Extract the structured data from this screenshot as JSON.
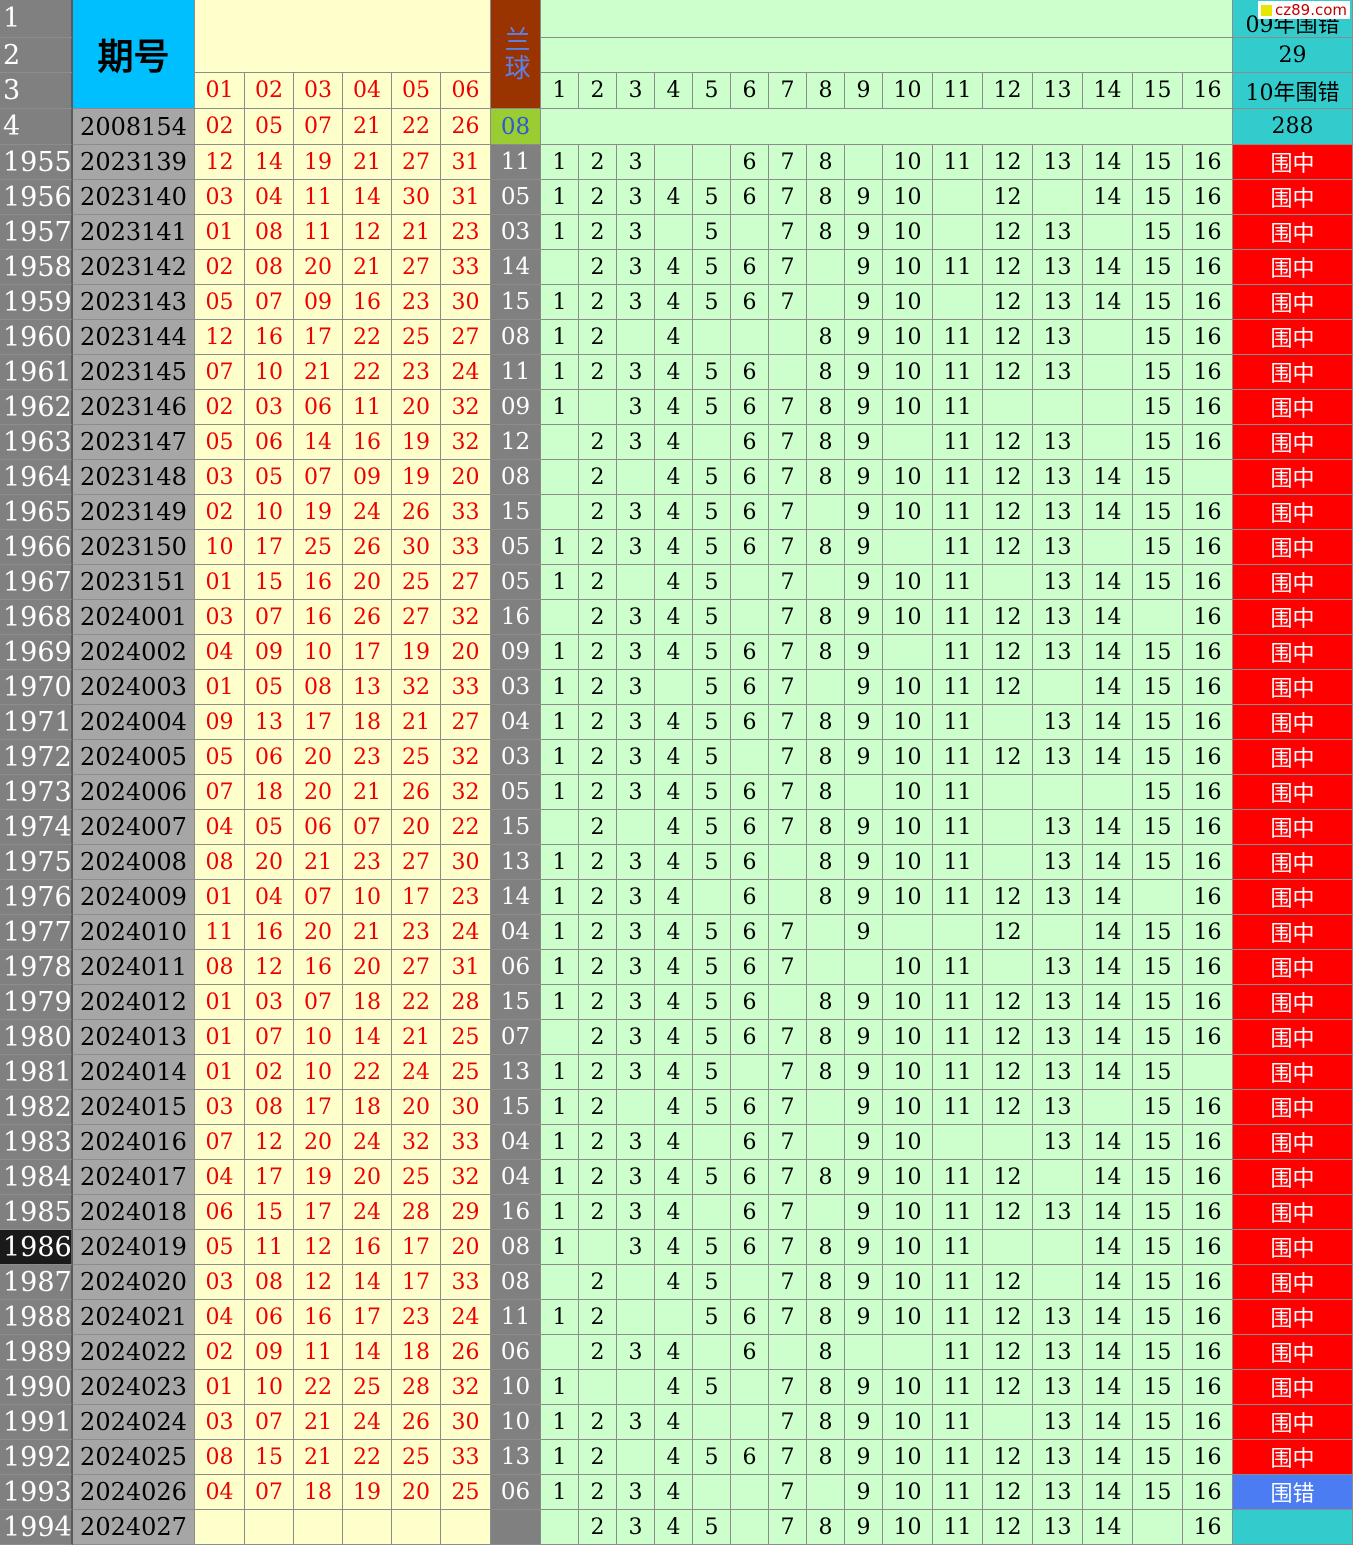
{
  "header": {
    "row_labels": [
      "1",
      "2",
      "3",
      "4"
    ],
    "issue_label": "期号",
    "blue_label": "兰球",
    "red_positions": [
      "01",
      "02",
      "03",
      "04",
      "05",
      "06"
    ],
    "grid_numbers": [
      "1",
      "2",
      "3",
      "4",
      "5",
      "6",
      "7",
      "8",
      "9",
      "10",
      "11",
      "12",
      "13",
      "14",
      "15",
      "16"
    ],
    "stats": {
      "r1": "09年围错",
      "r2": "29",
      "r3": "10年围错",
      "r4": "288"
    },
    "row4": {
      "issue": "2008154",
      "reds": [
        "02",
        "05",
        "07",
        "21",
        "22",
        "26"
      ],
      "blue": "08"
    },
    "watermark": "cz89.com"
  },
  "rows": [
    {
      "row": "1955",
      "issue": "2023139",
      "reds": [
        "12",
        "14",
        "19",
        "21",
        "27",
        "31"
      ],
      "blue": "11",
      "grid": "1 2 3 6 7 8 10 11 12 13 14 15 16",
      "result": "围中"
    },
    {
      "row": "1956",
      "issue": "2023140",
      "reds": [
        "03",
        "04",
        "11",
        "14",
        "30",
        "31"
      ],
      "blue": "05",
      "grid": "1 2 3 4 5 6 7 8 9 10 12 14 15 16",
      "result": "围中"
    },
    {
      "row": "1957",
      "issue": "2023141",
      "reds": [
        "01",
        "08",
        "11",
        "12",
        "21",
        "23"
      ],
      "blue": "03",
      "grid": "1 2 3 5 7 8 9 10 12 13 15 16",
      "result": "围中"
    },
    {
      "row": "1958",
      "issue": "2023142",
      "reds": [
        "02",
        "08",
        "20",
        "21",
        "27",
        "33"
      ],
      "blue": "14",
      "grid": "2 3 4 5 6 7 9 10 11 12 13 14 15 16",
      "result": "围中"
    },
    {
      "row": "1959",
      "issue": "2023143",
      "reds": [
        "05",
        "07",
        "09",
        "16",
        "23",
        "30"
      ],
      "blue": "15",
      "grid": "1 2 3 4 5 6 7 9 10 12 13 14 15 16",
      "result": "围中"
    },
    {
      "row": "1960",
      "issue": "2023144",
      "reds": [
        "12",
        "16",
        "17",
        "22",
        "25",
        "27"
      ],
      "blue": "08",
      "grid": "1 2 4 8 9 10 11 12 13 15 16",
      "result": "围中"
    },
    {
      "row": "1961",
      "issue": "2023145",
      "reds": [
        "07",
        "10",
        "21",
        "22",
        "23",
        "24"
      ],
      "blue": "11",
      "grid": "1 2 3 4 5 6 8 9 10 11 12 13 15 16",
      "result": "围中"
    },
    {
      "row": "1962",
      "issue": "2023146",
      "reds": [
        "02",
        "03",
        "06",
        "11",
        "20",
        "32"
      ],
      "blue": "09",
      "grid": "1 3 4 5 6 7 8 9 10 11 15 16",
      "result": "围中"
    },
    {
      "row": "1963",
      "issue": "2023147",
      "reds": [
        "05",
        "06",
        "14",
        "16",
        "19",
        "32"
      ],
      "blue": "12",
      "grid": "2 3 4 6 7 8 9 11 12 13 15 16",
      "result": "围中"
    },
    {
      "row": "1964",
      "issue": "2023148",
      "reds": [
        "03",
        "05",
        "07",
        "09",
        "19",
        "20"
      ],
      "blue": "08",
      "grid": "2 4 5 6 7 8 9 10 11 12 13 14 15",
      "result": "围中"
    },
    {
      "row": "1965",
      "issue": "2023149",
      "reds": [
        "02",
        "10",
        "19",
        "24",
        "26",
        "33"
      ],
      "blue": "15",
      "grid": "2 3 4 5 6 7 9 10 11 12 13 14 15 16",
      "result": "围中"
    },
    {
      "row": "1966",
      "issue": "2023150",
      "reds": [
        "10",
        "17",
        "25",
        "26",
        "30",
        "33"
      ],
      "blue": "05",
      "grid": "1 2 3 4 5 6 7 8 9 11 12 13 15 16",
      "result": "围中"
    },
    {
      "row": "1967",
      "issue": "2023151",
      "reds": [
        "01",
        "15",
        "16",
        "20",
        "25",
        "27"
      ],
      "blue": "05",
      "grid": "1 2 4 5 7 9 10 11 13 14 15 16",
      "result": "围中"
    },
    {
      "row": "1968",
      "issue": "2024001",
      "reds": [
        "03",
        "07",
        "16",
        "26",
        "27",
        "32"
      ],
      "blue": "16",
      "grid": "2 3 4 5 7 8 9 10 11 12 13 14 16",
      "result": "围中"
    },
    {
      "row": "1969",
      "issue": "2024002",
      "reds": [
        "04",
        "09",
        "10",
        "17",
        "19",
        "20"
      ],
      "blue": "09",
      "grid": "1 2 3 4 5 6 7 8 9 11 12 13 14 15 16",
      "result": "围中"
    },
    {
      "row": "1970",
      "issue": "2024003",
      "reds": [
        "01",
        "05",
        "08",
        "13",
        "32",
        "33"
      ],
      "blue": "03",
      "grid": "1 2 3 5 6 7 9 10 11 12 14 15 16",
      "result": "围中"
    },
    {
      "row": "1971",
      "issue": "2024004",
      "reds": [
        "09",
        "13",
        "17",
        "18",
        "21",
        "27"
      ],
      "blue": "04",
      "grid": "1 2 3 4 5 6 7 8 9 10 11 13 14 15 16",
      "result": "围中"
    },
    {
      "row": "1972",
      "issue": "2024005",
      "reds": [
        "05",
        "06",
        "20",
        "23",
        "25",
        "32"
      ],
      "blue": "03",
      "grid": "1 2 3 4 5 7 8 9 10 11 12 13 14 15 16",
      "result": "围中"
    },
    {
      "row": "1973",
      "issue": "2024006",
      "reds": [
        "07",
        "18",
        "20",
        "21",
        "26",
        "32"
      ],
      "blue": "05",
      "grid": "1 2 3 4 5 6 7 8 10 11 15 16",
      "result": "围中"
    },
    {
      "row": "1974",
      "issue": "2024007",
      "reds": [
        "04",
        "05",
        "06",
        "07",
        "20",
        "22"
      ],
      "blue": "15",
      "grid": "2 4 5 6 7 8 9 10 11 13 14 15 16",
      "result": "围中"
    },
    {
      "row": "1975",
      "issue": "2024008",
      "reds": [
        "08",
        "20",
        "21",
        "23",
        "27",
        "30"
      ],
      "blue": "13",
      "grid": "1 2 3 4 5 6 8 9 10 11 13 14 15 16",
      "result": "围中"
    },
    {
      "row": "1976",
      "issue": "2024009",
      "reds": [
        "01",
        "04",
        "07",
        "10",
        "17",
        "23"
      ],
      "blue": "14",
      "grid": "1 2 3 4 6 8 9 10 11 12 13 14 16",
      "result": "围中"
    },
    {
      "row": "1977",
      "issue": "2024010",
      "reds": [
        "11",
        "16",
        "20",
        "21",
        "23",
        "24"
      ],
      "blue": "04",
      "grid": "1 2 3 4 5 6 7 9 12 14 15 16",
      "result": "围中"
    },
    {
      "row": "1978",
      "issue": "2024011",
      "reds": [
        "08",
        "12",
        "16",
        "20",
        "27",
        "31"
      ],
      "blue": "06",
      "grid": "1 2 3 4 5 6 7 10 11 13 14 15 16",
      "result": "围中"
    },
    {
      "row": "1979",
      "issue": "2024012",
      "reds": [
        "01",
        "03",
        "07",
        "18",
        "22",
        "28"
      ],
      "blue": "15",
      "grid": "1 2 3 4 5 6 8 9 10 11 12 13 14 15 16",
      "result": "围中"
    },
    {
      "row": "1980",
      "issue": "2024013",
      "reds": [
        "01",
        "07",
        "10",
        "14",
        "21",
        "25"
      ],
      "blue": "07",
      "grid": "2 3 4 5 6 7 8 9 10 11 12 13 14 15 16",
      "result": "围中"
    },
    {
      "row": "1981",
      "issue": "2024014",
      "reds": [
        "01",
        "02",
        "10",
        "22",
        "24",
        "25"
      ],
      "blue": "13",
      "grid": "1 2 3 4 5 7 8 9 10 11 12 13 14 15",
      "result": "围中"
    },
    {
      "row": "1982",
      "issue": "2024015",
      "reds": [
        "03",
        "08",
        "17",
        "18",
        "20",
        "30"
      ],
      "blue": "15",
      "grid": "1 2 4 5 6 7 9 10 11 12 13 15 16",
      "result": "围中"
    },
    {
      "row": "1983",
      "issue": "2024016",
      "reds": [
        "07",
        "12",
        "20",
        "24",
        "32",
        "33"
      ],
      "blue": "04",
      "grid": "1 2 3 4 6 7 9 10 13 14 15 16",
      "result": "围中"
    },
    {
      "row": "1984",
      "issue": "2024017",
      "reds": [
        "04",
        "17",
        "19",
        "20",
        "25",
        "32"
      ],
      "blue": "04",
      "grid": "1 2 3 4 5 6 7 8 9 10 11 12 14 15 16",
      "result": "围中"
    },
    {
      "row": "1985",
      "issue": "2024018",
      "reds": [
        "06",
        "15",
        "17",
        "24",
        "28",
        "29"
      ],
      "blue": "16",
      "grid": "1 2 3 4 6 7 9 10 11 12 13 14 15 16",
      "result": "围中"
    },
    {
      "row": "1986",
      "issue": "2024019",
      "reds": [
        "05",
        "11",
        "12",
        "16",
        "17",
        "20"
      ],
      "blue": "08",
      "grid": "1 3 4 5 6 7 8 9 10 11 14 15 16",
      "result": "围中"
    },
    {
      "row": "1987",
      "issue": "2024020",
      "reds": [
        "03",
        "08",
        "12",
        "14",
        "17",
        "33"
      ],
      "blue": "08",
      "grid": "2 4 5 7 8 9 10 11 12 14 15 16",
      "result": "围中"
    },
    {
      "row": "1988",
      "issue": "2024021",
      "reds": [
        "04",
        "06",
        "16",
        "17",
        "23",
        "24"
      ],
      "blue": "11",
      "grid": "1 2 5 6 7 8 9 10 11 12 13 14 15 16",
      "result": "围中"
    },
    {
      "row": "1989",
      "issue": "2024022",
      "reds": [
        "02",
        "09",
        "11",
        "14",
        "18",
        "26"
      ],
      "blue": "06",
      "grid": "2 3 4 6 8 11 12 13 14 15 16",
      "result": "围中"
    },
    {
      "row": "1990",
      "issue": "2024023",
      "reds": [
        "01",
        "10",
        "22",
        "25",
        "28",
        "32"
      ],
      "blue": "10",
      "grid": "1 4 5 7 8 9 10 11 12 13 14 15 16",
      "result": "围中"
    },
    {
      "row": "1991",
      "issue": "2024024",
      "reds": [
        "03",
        "07",
        "21",
        "24",
        "26",
        "30"
      ],
      "blue": "10",
      "grid": "1 2 3 4 7 8 9 10 11 13 14 15 16",
      "result": "围中"
    },
    {
      "row": "1992",
      "issue": "2024025",
      "reds": [
        "08",
        "15",
        "21",
        "22",
        "25",
        "33"
      ],
      "blue": "13",
      "grid": "1 2 4 5 6 7 8 9 10 11 12 13 14 15 16",
      "result": "围中"
    },
    {
      "row": "1993",
      "issue": "2024026",
      "reds": [
        "04",
        "07",
        "18",
        "19",
        "20",
        "25"
      ],
      "blue": "06",
      "grid": "1 2 3 4 7 9 10 11 12 13 14 15 16",
      "result": "围错"
    },
    {
      "row": "1994",
      "issue": "2024027",
      "reds": [
        "",
        "",
        "",
        "",
        "",
        ""
      ],
      "blue": "",
      "grid": "2 3 4 5 7 8 9 10 11 12 13 14 16",
      "result": ""
    }
  ],
  "selected_row": "1986"
}
